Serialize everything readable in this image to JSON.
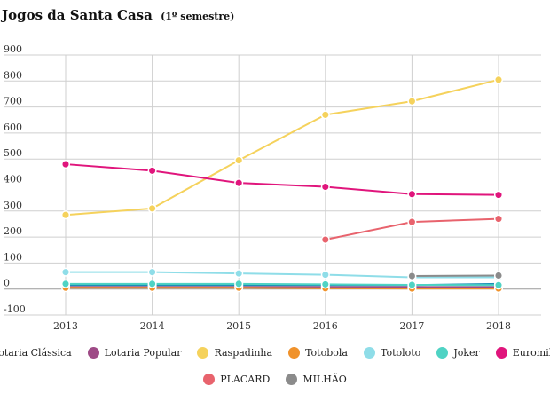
{
  "chart_data": {
    "type": "line",
    "title": "Jogos da Santa Casa",
    "subtitle": "(1º semestre)",
    "xlabel": "",
    "ylabel": "",
    "categories": [
      "2013",
      "2014",
      "2015",
      "2016",
      "2017",
      "2018"
    ],
    "ylim": [
      -100,
      900
    ],
    "yticks": [
      -100,
      0,
      100,
      200,
      300,
      400,
      500,
      600,
      700,
      800,
      900
    ],
    "grid": true,
    "legend": "bottom",
    "series": [
      {
        "name": "Lotaria Clássica",
        "color": "#1a8fb5",
        "values": [
          15,
          15,
          15,
          15,
          15,
          20
        ]
      },
      {
        "name": "Lotaria Popular",
        "color": "#9e4a86",
        "values": [
          8,
          8,
          8,
          8,
          8,
          8
        ]
      },
      {
        "name": "Raspadinha",
        "color": "#f5d25c",
        "values": [
          285,
          310,
          495,
          670,
          722,
          805
        ]
      },
      {
        "name": "Totobola",
        "color": "#f0922b",
        "values": [
          5,
          5,
          5,
          3,
          2,
          2
        ]
      },
      {
        "name": "Totoloto",
        "color": "#8fdde8",
        "values": [
          65,
          65,
          60,
          55,
          45,
          45
        ]
      },
      {
        "name": "Joker",
        "color": "#4fd3c4",
        "values": [
          20,
          20,
          20,
          18,
          16,
          15
        ]
      },
      {
        "name": "Euromilhões",
        "color": "#e0157c",
        "values": [
          480,
          455,
          408,
          393,
          365,
          362
        ]
      },
      {
        "name": "PLACARD",
        "color": "#e8636d",
        "values": [
          null,
          null,
          null,
          190,
          258,
          270
        ]
      },
      {
        "name": "MILHÃO",
        "color": "#8b8b8b",
        "values": [
          null,
          null,
          null,
          null,
          50,
          52
        ]
      }
    ]
  }
}
